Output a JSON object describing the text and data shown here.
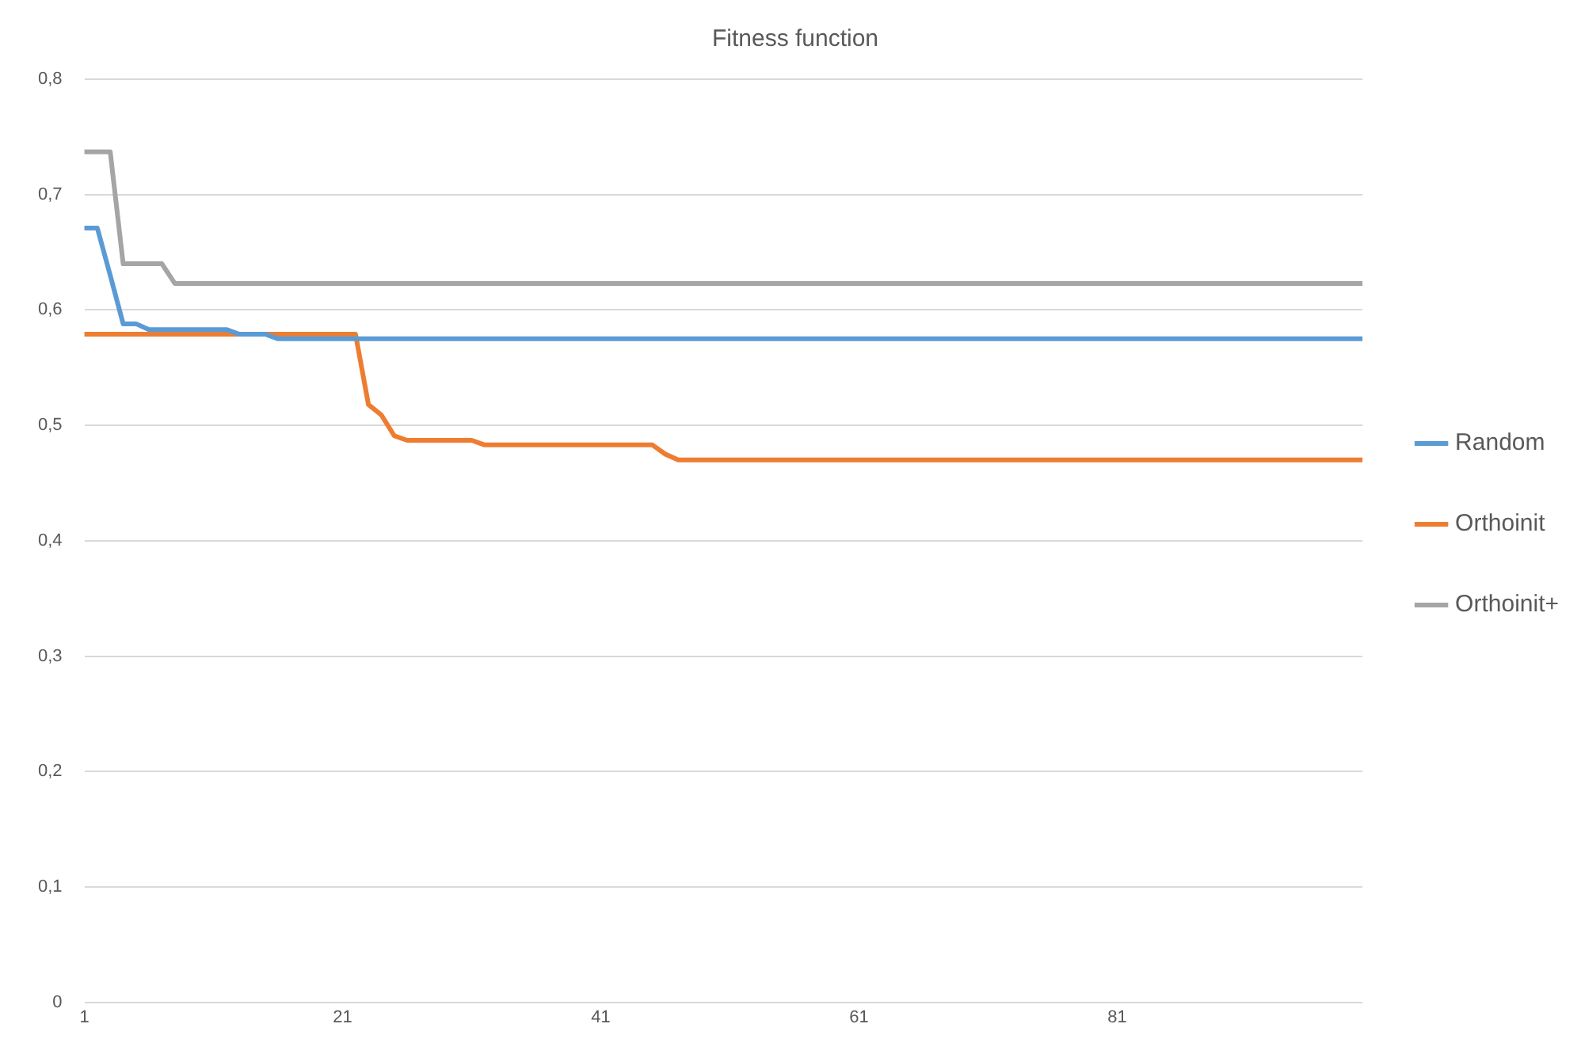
{
  "chart_data": {
    "type": "line",
    "title": "Fitness function",
    "x": [
      1,
      2,
      3,
      4,
      5,
      6,
      7,
      8,
      9,
      10,
      11,
      12,
      13,
      14,
      15,
      16,
      17,
      18,
      19,
      20,
      21,
      22,
      23,
      24,
      25,
      26,
      27,
      28,
      29,
      30,
      31,
      32,
      33,
      34,
      35,
      36,
      37,
      38,
      39,
      40,
      41,
      42,
      43,
      44,
      45,
      46,
      47,
      48,
      49,
      50,
      51,
      52,
      53,
      54,
      55,
      56,
      57,
      58,
      59,
      60,
      61,
      62,
      63,
      64,
      65,
      66,
      67,
      68,
      69,
      70,
      71,
      72,
      73,
      74,
      75,
      76,
      77,
      78,
      79,
      80,
      81,
      82,
      83,
      84,
      85,
      86,
      87,
      88,
      89,
      90,
      91,
      92,
      93,
      94,
      95,
      96,
      97,
      98,
      99,
      100
    ],
    "series": [
      {
        "name": "Random",
        "color": "#5b9bd5",
        "values": [
          0.671,
          0.671,
          0.63,
          0.588,
          0.588,
          0.583,
          0.583,
          0.583,
          0.583,
          0.583,
          0.583,
          0.583,
          0.579,
          0.579,
          0.579,
          0.575,
          0.575,
          0.575,
          0.575,
          0.575,
          0.575,
          0.575,
          0.575,
          0.575,
          0.575,
          0.575,
          0.575,
          0.575,
          0.575,
          0.575,
          0.575,
          0.575,
          0.575,
          0.575,
          0.575,
          0.575,
          0.575,
          0.575,
          0.575,
          0.575,
          0.575,
          0.575,
          0.575,
          0.575,
          0.575,
          0.575,
          0.575,
          0.575,
          0.575,
          0.575,
          0.575,
          0.575,
          0.575,
          0.575,
          0.575,
          0.575,
          0.575,
          0.575,
          0.575,
          0.575,
          0.575,
          0.575,
          0.575,
          0.575,
          0.575,
          0.575,
          0.575,
          0.575,
          0.575,
          0.575,
          0.575,
          0.575,
          0.575,
          0.575,
          0.575,
          0.575,
          0.575,
          0.575,
          0.575,
          0.575,
          0.575,
          0.575,
          0.575,
          0.575,
          0.575,
          0.575,
          0.575,
          0.575,
          0.575,
          0.575,
          0.575,
          0.575,
          0.575,
          0.575,
          0.575,
          0.575,
          0.575,
          0.575,
          0.575,
          0.575
        ]
      },
      {
        "name": "Orthoinit",
        "color": "#ed7d31",
        "values": [
          0.579,
          0.579,
          0.579,
          0.579,
          0.579,
          0.579,
          0.579,
          0.579,
          0.579,
          0.579,
          0.579,
          0.579,
          0.579,
          0.579,
          0.579,
          0.579,
          0.579,
          0.579,
          0.579,
          0.579,
          0.579,
          0.579,
          0.518,
          0.509,
          0.491,
          0.487,
          0.487,
          0.487,
          0.487,
          0.487,
          0.487,
          0.483,
          0.483,
          0.483,
          0.483,
          0.483,
          0.483,
          0.483,
          0.483,
          0.483,
          0.483,
          0.483,
          0.483,
          0.483,
          0.483,
          0.475,
          0.47,
          0.47,
          0.47,
          0.47,
          0.47,
          0.47,
          0.47,
          0.47,
          0.47,
          0.47,
          0.47,
          0.47,
          0.47,
          0.47,
          0.47,
          0.47,
          0.47,
          0.47,
          0.47,
          0.47,
          0.47,
          0.47,
          0.47,
          0.47,
          0.47,
          0.47,
          0.47,
          0.47,
          0.47,
          0.47,
          0.47,
          0.47,
          0.47,
          0.47,
          0.47,
          0.47,
          0.47,
          0.47,
          0.47,
          0.47,
          0.47,
          0.47,
          0.47,
          0.47,
          0.47,
          0.47,
          0.47,
          0.47,
          0.47,
          0.47,
          0.47,
          0.47,
          0.47,
          0.47
        ]
      },
      {
        "name": "Orthoinit+",
        "color": "#a5a5a5",
        "values": [
          0.737,
          0.737,
          0.737,
          0.64,
          0.64,
          0.64,
          0.64,
          0.623,
          0.623,
          0.623,
          0.623,
          0.623,
          0.623,
          0.623,
          0.623,
          0.623,
          0.623,
          0.623,
          0.623,
          0.623,
          0.623,
          0.623,
          0.623,
          0.623,
          0.623,
          0.623,
          0.623,
          0.623,
          0.623,
          0.623,
          0.623,
          0.623,
          0.623,
          0.623,
          0.623,
          0.623,
          0.623,
          0.623,
          0.623,
          0.623,
          0.623,
          0.623,
          0.623,
          0.623,
          0.623,
          0.623,
          0.623,
          0.623,
          0.623,
          0.623,
          0.623,
          0.623,
          0.623,
          0.623,
          0.623,
          0.623,
          0.623,
          0.623,
          0.623,
          0.623,
          0.623,
          0.623,
          0.623,
          0.623,
          0.623,
          0.623,
          0.623,
          0.623,
          0.623,
          0.623,
          0.623,
          0.623,
          0.623,
          0.623,
          0.623,
          0.623,
          0.623,
          0.623,
          0.623,
          0.623,
          0.623,
          0.623,
          0.623,
          0.623,
          0.623,
          0.623,
          0.623,
          0.623,
          0.623,
          0.623,
          0.623,
          0.623,
          0.623,
          0.623,
          0.623,
          0.623,
          0.623,
          0.623,
          0.623,
          0.623
        ]
      }
    ],
    "xlim": [
      1,
      100
    ],
    "xticks": [
      1,
      21,
      41,
      61,
      81
    ],
    "ylim": [
      0,
      0.8
    ],
    "yticks": [
      0,
      {
        "value": 0.1,
        "label": "0,1"
      },
      {
        "value": 0.2,
        "label": "0,2"
      },
      {
        "value": 0.3,
        "label": "0,3"
      },
      {
        "value": 0.4,
        "label": "0,4"
      },
      {
        "value": 0.5,
        "label": "0,5"
      },
      {
        "value": 0.6,
        "label": "0,6"
      },
      {
        "value": 0.7,
        "label": "0,7"
      },
      {
        "value": 0.8,
        "label": "0,8"
      }
    ],
    "grid": "y",
    "legend": "right",
    "marker": "none",
    "line_style": "solid"
  }
}
